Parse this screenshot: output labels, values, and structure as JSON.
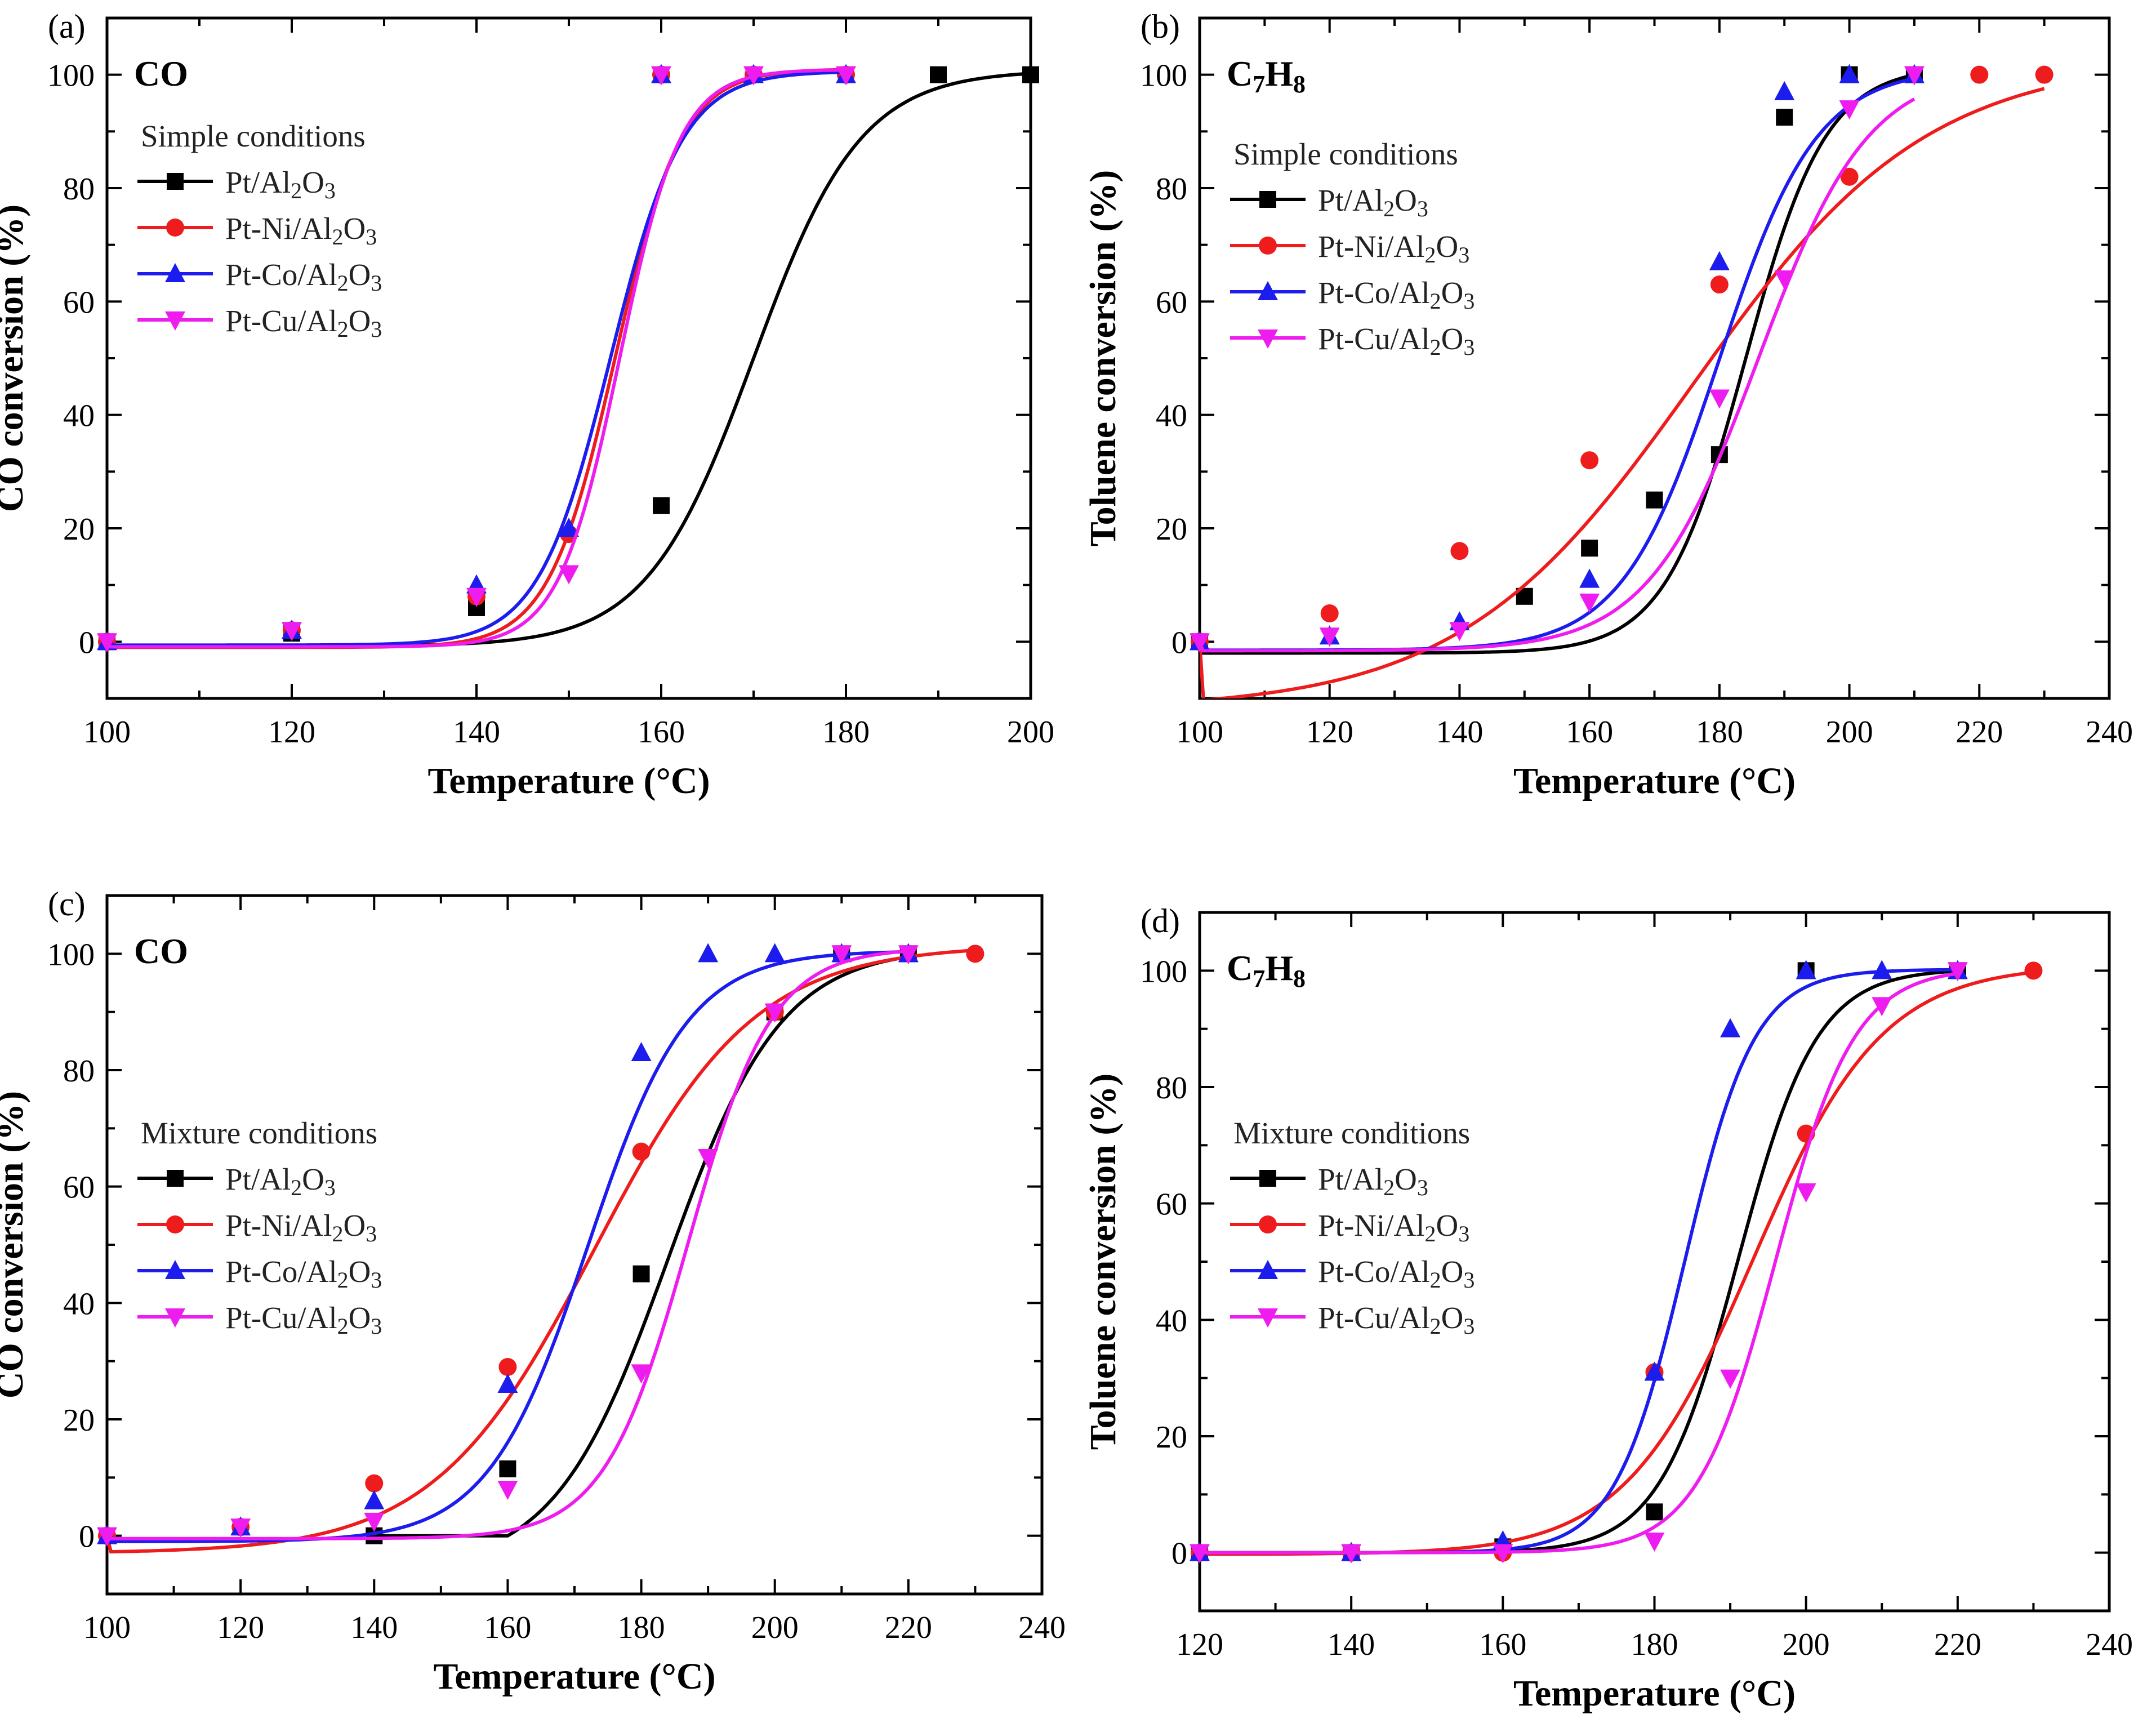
{
  "figure": {
    "colors": {
      "Pt/Al2O3": "#000000",
      "Pt-Ni/Al2O3": "#ee1c1c",
      "Pt-Co/Al2O3": "#1c1cee",
      "Pt-Cu/Al2O3": "#ee1cee"
    }
  },
  "chart_data": [
    {
      "type": "line",
      "panel_label": "(a)",
      "title": "CO",
      "xlabel": "Temperature (°C)",
      "ylabel": "CO conversion (%)",
      "xlim": [
        100,
        200
      ],
      "ylim": [
        -10,
        110
      ],
      "xticks": [
        100,
        120,
        140,
        160,
        180,
        200
      ],
      "yticks": [
        0,
        20,
        40,
        60,
        80,
        100
      ],
      "legend_title": "Simple conditions",
      "legend_position": "left",
      "series": [
        {
          "name": "Pt/Al2O3",
          "marker": "square",
          "x": [
            100,
            120,
            140,
            160,
            190,
            200
          ],
          "y": [
            0,
            1.5,
            6,
            24,
            100,
            100
          ]
        },
        {
          "name": "Pt-Ni/Al2O3",
          "marker": "circle",
          "x": [
            100,
            120,
            140,
            150,
            160,
            170,
            180
          ],
          "y": [
            0,
            2,
            8,
            19,
            100,
            100,
            100
          ]
        },
        {
          "name": "Pt-Co/Al2O3",
          "marker": "triangle-up",
          "x": [
            100,
            120,
            140,
            150,
            160,
            170,
            180
          ],
          "y": [
            0,
            2,
            10,
            20,
            100,
            100,
            100
          ]
        },
        {
          "name": "Pt-Cu/Al2O3",
          "marker": "triangle-down",
          "x": [
            100,
            120,
            140,
            150,
            160,
            170,
            180
          ],
          "y": [
            0,
            2,
            8,
            12,
            100,
            100,
            100
          ]
        }
      ]
    },
    {
      "type": "line",
      "panel_label": "(b)",
      "title": "C7H8",
      "title_main": "C",
      "title_sub1": "7",
      "title_mid": "H",
      "title_sub2": "8",
      "xlabel": "Temperature (°C)",
      "ylabel": "Toluene conversion (%)",
      "xlim": [
        100,
        240
      ],
      "ylim": [
        -10,
        110
      ],
      "xticks": [
        100,
        120,
        140,
        160,
        180,
        200,
        220,
        240
      ],
      "yticks": [
        0,
        20,
        40,
        60,
        80,
        100
      ],
      "legend_title": "Simple conditions",
      "legend_position": "left",
      "series": [
        {
          "name": "Pt/Al2O3",
          "marker": "square",
          "x": [
            100,
            150,
            160,
            170,
            180,
            190,
            200,
            210
          ],
          "y": [
            0,
            8,
            16.5,
            25,
            33,
            92.5,
            100,
            100
          ]
        },
        {
          "name": "Pt-Ni/Al2O3",
          "marker": "circle",
          "x": [
            100,
            120,
            140,
            160,
            180,
            200,
            220,
            230
          ],
          "y": [
            0,
            5,
            16,
            32,
            63,
            82,
            100,
            100
          ]
        },
        {
          "name": "Pt-Co/Al2O3",
          "marker": "triangle-up",
          "x": [
            100,
            120,
            140,
            160,
            180,
            190,
            200,
            210
          ],
          "y": [
            0,
            1,
            3.5,
            11,
            67,
            97,
            100,
            100
          ]
        },
        {
          "name": "Pt-Cu/Al2O3",
          "marker": "triangle-down",
          "x": [
            100,
            120,
            140,
            160,
            180,
            190,
            200,
            210
          ],
          "y": [
            0,
            1,
            2,
            7,
            43,
            64,
            94,
            100
          ]
        }
      ]
    },
    {
      "type": "line",
      "panel_label": "(c)",
      "title": "CO",
      "xlabel": "Temperature (°C)",
      "ylabel": "CO conversion (%)",
      "xlim": [
        100,
        240
      ],
      "ylim": [
        -10,
        110
      ],
      "xticks": [
        100,
        120,
        140,
        160,
        180,
        200,
        220,
        240
      ],
      "yticks": [
        0,
        20,
        40,
        60,
        80,
        100
      ],
      "legend_title": "Mixture conditions",
      "legend_position": "left",
      "series": [
        {
          "name": "Pt/Al2O3",
          "marker": "square",
          "x": [
            140,
            160,
            180,
            200,
            210,
            220
          ],
          "y": [
            0,
            11.5,
            45,
            90,
            100,
            100
          ]
        },
        {
          "name": "Pt-Ni/Al2O3",
          "marker": "circle",
          "x": [
            100,
            120,
            140,
            160,
            180,
            200,
            230
          ],
          "y": [
            0,
            1.5,
            9,
            29,
            66,
            90,
            100
          ]
        },
        {
          "name": "Pt-Co/Al2O3",
          "marker": "triangle-up",
          "x": [
            100,
            120,
            140,
            160,
            180,
            190,
            200,
            210,
            220
          ],
          "y": [
            0,
            1.5,
            6,
            26,
            83,
            100,
            100,
            100,
            100
          ]
        },
        {
          "name": "Pt-Cu/Al2O3",
          "marker": "triangle-down",
          "x": [
            100,
            120,
            140,
            160,
            180,
            190,
            200,
            210,
            220
          ],
          "y": [
            0,
            1.5,
            2.5,
            8,
            28,
            65,
            90,
            100,
            100
          ]
        }
      ]
    },
    {
      "type": "line",
      "panel_label": "(d)",
      "title": "C7H8",
      "title_main": "C",
      "title_sub1": "7",
      "title_mid": "H",
      "title_sub2": "8",
      "xlabel": "Temperature (°C)",
      "ylabel": "Toluene conversion (%)",
      "xlim": [
        120,
        240
      ],
      "ylim": [
        -10,
        110
      ],
      "xticks": [
        120,
        140,
        160,
        180,
        200,
        220,
        240
      ],
      "yticks": [
        0,
        20,
        40,
        60,
        80,
        100
      ],
      "legend_title": "Mixture conditions",
      "legend_position": "left",
      "series": [
        {
          "name": "Pt/Al2O3",
          "marker": "square",
          "x": [
            120,
            140,
            160,
            180,
            200,
            220
          ],
          "y": [
            0,
            0,
            1,
            7,
            100,
            100
          ]
        },
        {
          "name": "Pt-Ni/Al2O3",
          "marker": "circle",
          "x": [
            120,
            140,
            160,
            180,
            200,
            230
          ],
          "y": [
            0,
            0,
            0,
            31,
            72,
            100
          ]
        },
        {
          "name": "Pt-Co/Al2O3",
          "marker": "triangle-up",
          "x": [
            120,
            140,
            160,
            180,
            190,
            200,
            210,
            220
          ],
          "y": [
            0,
            0,
            2,
            31,
            90,
            100,
            100,
            100
          ]
        },
        {
          "name": "Pt-Cu/Al2O3",
          "marker": "triangle-down",
          "x": [
            120,
            140,
            160,
            180,
            190,
            200,
            210,
            220
          ],
          "y": [
            0,
            0,
            0,
            2,
            30,
            62,
            94,
            100
          ]
        }
      ]
    }
  ]
}
